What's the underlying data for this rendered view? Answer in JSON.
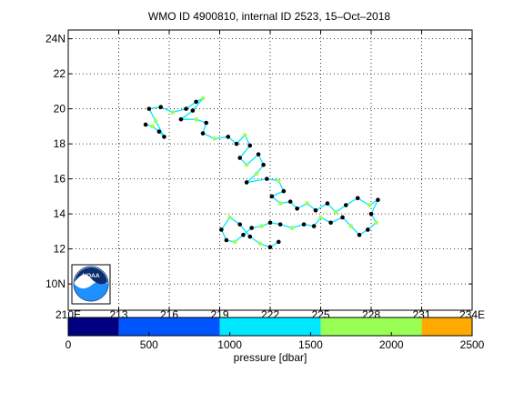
{
  "chart_data": {
    "type": "line",
    "title": "WMO ID 4900810, internal ID 2523, 15–Oct–2018",
    "xlabel": "",
    "ylabel": "",
    "xlim": [
      210,
      234
    ],
    "ylim": [
      8.5,
      24.5
    ],
    "x_ticks": [
      210,
      213,
      216,
      219,
      222,
      225,
      228,
      231,
      234
    ],
    "x_tick_labels": [
      "210E",
      "213",
      "216",
      "219",
      "222",
      "225",
      "228",
      "231",
      "234E"
    ],
    "y_ticks": [
      10,
      12,
      14,
      16,
      18,
      20,
      22,
      24
    ],
    "y_tick_labels": [
      "10N",
      "12",
      "14",
      "16",
      "18",
      "20",
      "22",
      "24N"
    ],
    "grid": true,
    "series": [
      {
        "values": [
          [
            214.6,
            19.1
          ],
          [
            215.0,
            19.0
          ],
          [
            215.4,
            18.7
          ],
          [
            215.7,
            18.4
          ],
          [
            215.2,
            19.3
          ],
          [
            214.8,
            20.0
          ],
          [
            215.5,
            20.1
          ],
          [
            216.2,
            19.8
          ],
          [
            217.0,
            20.0
          ],
          [
            217.6,
            20.4
          ],
          [
            218.0,
            20.6
          ],
          [
            217.4,
            19.9
          ],
          [
            216.7,
            19.4
          ],
          [
            217.6,
            19.4
          ],
          [
            218.2,
            19.2
          ],
          [
            218.0,
            18.6
          ],
          [
            218.7,
            18.3
          ],
          [
            219.5,
            18.4
          ],
          [
            220.0,
            18.0
          ],
          [
            220.5,
            18.5
          ],
          [
            220.8,
            17.9
          ],
          [
            220.2,
            17.2
          ],
          [
            220.6,
            16.8
          ],
          [
            221.3,
            17.4
          ],
          [
            221.6,
            16.8
          ],
          [
            221.2,
            16.3
          ],
          [
            220.6,
            15.8
          ],
          [
            221.8,
            16.0
          ],
          [
            222.5,
            15.9
          ],
          [
            222.8,
            15.3
          ],
          [
            222.1,
            15.0
          ],
          [
            222.6,
            14.6
          ],
          [
            223.2,
            14.7
          ],
          [
            223.6,
            14.3
          ],
          [
            224.2,
            14.6
          ],
          [
            224.7,
            14.2
          ],
          [
            225.4,
            14.6
          ],
          [
            225.9,
            14.1
          ],
          [
            226.5,
            14.5
          ],
          [
            227.2,
            14.9
          ],
          [
            227.9,
            14.5
          ],
          [
            228.4,
            14.8
          ],
          [
            228.0,
            14.0
          ],
          [
            228.3,
            13.5
          ],
          [
            227.8,
            13.1
          ],
          [
            227.3,
            12.8
          ],
          [
            226.8,
            13.3
          ],
          [
            226.3,
            13.8
          ],
          [
            225.6,
            13.5
          ],
          [
            225.0,
            13.8
          ],
          [
            224.6,
            13.3
          ],
          [
            224.0,
            13.4
          ],
          [
            223.3,
            13.2
          ],
          [
            222.6,
            13.4
          ],
          [
            222.0,
            13.5
          ],
          [
            221.5,
            13.3
          ],
          [
            220.9,
            13.2
          ],
          [
            220.4,
            12.8
          ],
          [
            219.9,
            12.4
          ],
          [
            219.4,
            12.5
          ],
          [
            219.1,
            13.1
          ],
          [
            219.6,
            13.8
          ],
          [
            220.2,
            13.4
          ],
          [
            220.8,
            12.7
          ],
          [
            221.4,
            12.3
          ],
          [
            222.0,
            12.1
          ],
          [
            222.5,
            12.4
          ]
        ]
      }
    ],
    "colorbar": {
      "label": "pressure [dbar]",
      "range": [
        0,
        2500
      ],
      "tick_values": [
        0,
        500,
        1000,
        1500,
        2000,
        2500
      ],
      "tick_labels": [
        "0",
        "500",
        "1000",
        "1500",
        "2000",
        "2500"
      ],
      "bands": [
        {
          "from": 0,
          "to": 313,
          "color": "#000080"
        },
        {
          "from": 313,
          "to": 938,
          "color": "#0055ff"
        },
        {
          "from": 938,
          "to": 1563,
          "color": "#00e8ff"
        },
        {
          "from": 1563,
          "to": 2188,
          "color": "#99ff55"
        },
        {
          "from": 2188,
          "to": 2500,
          "color": "#ffaa00"
        }
      ]
    },
    "colors": {
      "track": "#00e8ff",
      "profile_marker": "#000000",
      "marker_highlight": "#99ff55"
    }
  },
  "logo": {
    "text": "NOAA",
    "name": "noaa-logo"
  }
}
